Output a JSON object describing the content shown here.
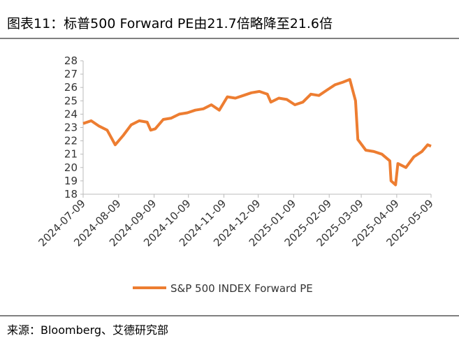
{
  "chart_data": {
    "type": "line",
    "title": "图表11：标普500 Forward PE由21.7倍略降至21.6倍",
    "source": "来源：Bloomberg、艾德研究部",
    "x": [
      "2024-07-09",
      "2024-07-16",
      "2024-07-23",
      "2024-07-30",
      "2024-08-06",
      "2024-08-13",
      "2024-08-20",
      "2024-08-27",
      "2024-09-03",
      "2024-09-06",
      "2024-09-10",
      "2024-09-17",
      "2024-09-24",
      "2024-10-01",
      "2024-10-08",
      "2024-10-15",
      "2024-10-22",
      "2024-10-29",
      "2024-11-05",
      "2024-11-12",
      "2024-11-19",
      "2024-11-26",
      "2024-12-03",
      "2024-12-10",
      "2024-12-17",
      "2024-12-20",
      "2024-12-27",
      "2025-01-03",
      "2025-01-10",
      "2025-01-17",
      "2025-01-24",
      "2025-01-31",
      "2025-02-07",
      "2025-02-14",
      "2025-02-21",
      "2025-02-27",
      "2025-03-04",
      "2025-03-06",
      "2025-03-13",
      "2025-03-20",
      "2025-03-27",
      "2025-04-03",
      "2025-04-04",
      "2025-04-08",
      "2025-04-10",
      "2025-04-17",
      "2025-04-24",
      "2025-05-01",
      "2025-05-06",
      "2025-05-09"
    ],
    "series": [
      {
        "name": "S&P 500 INDEX Forward PE",
        "color": "#ed7d31",
        "values": [
          23.3,
          23.5,
          23.1,
          22.8,
          21.7,
          22.4,
          23.2,
          23.5,
          23.4,
          22.8,
          22.9,
          23.6,
          23.7,
          24.0,
          24.1,
          24.3,
          24.4,
          24.7,
          24.3,
          25.3,
          25.2,
          25.4,
          25.6,
          25.7,
          25.5,
          24.9,
          25.2,
          25.1,
          24.7,
          24.9,
          25.5,
          25.4,
          25.8,
          26.2,
          26.4,
          26.6,
          25.0,
          22.1,
          21.3,
          21.2,
          21.0,
          20.5,
          19.0,
          18.7,
          20.3,
          20.0,
          20.8,
          21.2,
          21.7,
          21.6
        ]
      }
    ],
    "xlim": [
      "2024-07-09",
      "2025-05-09"
    ],
    "xticks": [
      "2024-07-09",
      "2024-08-09",
      "2024-09-09",
      "2024-10-09",
      "2024-11-09",
      "2024-12-09",
      "2025-01-09",
      "2025-02-09",
      "2025-03-09",
      "2025-04-09",
      "2025-05-09"
    ],
    "ylim": [
      18,
      28
    ],
    "yticks": [
      18,
      19,
      20,
      21,
      22,
      23,
      24,
      25,
      26,
      27,
      28
    ],
    "legend": "bottom"
  }
}
